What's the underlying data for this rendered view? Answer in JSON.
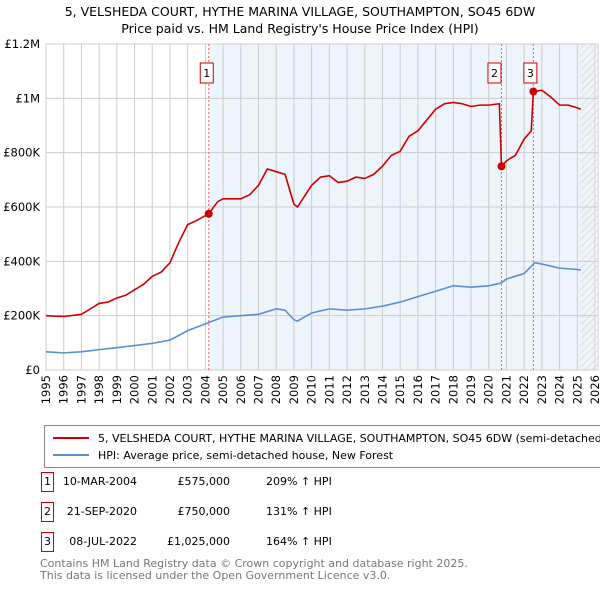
{
  "header": {
    "title_line1": "5, VELSHEDA COURT, HYTHE MARINA VILLAGE, SOUTHAMPTON, SO45 6DW",
    "title_line2": "Price paid vs. HM Land Registry's House Price Index (HPI)"
  },
  "colors": {
    "property": "#cc0000",
    "hpi": "#5b8fd0",
    "shade": "#eef4fc",
    "grid": "#cccccc"
  },
  "chart_data": {
    "type": "line",
    "xlim": [
      1995,
      2026
    ],
    "ylim": [
      0,
      1200000
    ],
    "y_ticks": [
      {
        "v": 0,
        "label": "£0"
      },
      {
        "v": 200000,
        "label": "£200K"
      },
      {
        "v": 400000,
        "label": "£400K"
      },
      {
        "v": 600000,
        "label": "£600K"
      },
      {
        "v": 800000,
        "label": "£800K"
      },
      {
        "v": 1000000,
        "label": "£1M"
      },
      {
        "v": 1200000,
        "label": "£1.2M"
      }
    ],
    "x_ticks": [
      "1995",
      "1996",
      "1997",
      "1998",
      "1999",
      "2000",
      "2001",
      "2002",
      "2003",
      "2004",
      "2005",
      "2006",
      "2007",
      "2008",
      "2009",
      "2010",
      "2011",
      "2012",
      "2013",
      "2014",
      "2015",
      "2016",
      "2017",
      "2018",
      "2019",
      "2020",
      "2021",
      "2022",
      "2023",
      "2024",
      "2025",
      "2026"
    ],
    "series": [
      {
        "name": "5, VELSHEDA COURT, HYTHE MARINA VILLAGE, SOUTHAMPTON, SO45 6DW (semi-detached house)",
        "color": "#cc0000",
        "x": [
          1995,
          1995.5,
          1996,
          1997,
          1997.5,
          1998,
          1998.5,
          1999,
          1999.5,
          2000,
          2000.5,
          2001,
          2001.5,
          2002,
          2002.5,
          2003,
          2003.5,
          2004.19,
          2004.7,
          2005,
          2006,
          2006.5,
          2007,
          2007.5,
          2008,
          2008.5,
          2009,
          2009.2,
          2010,
          2010.5,
          2011,
          2011.5,
          2012,
          2012.5,
          2013,
          2013.5,
          2014,
          2014.5,
          2015,
          2015.5,
          2016,
          2016.5,
          2017,
          2017.5,
          2018,
          2018.5,
          2019,
          2019.5,
          2020,
          2020.6,
          2020.72,
          2021,
          2021.5,
          2022,
          2022.4,
          2022.52,
          2023,
          2023.5,
          2024,
          2024.5,
          2025,
          2025.2
        ],
        "y": [
          200000,
          198000,
          197000,
          205000,
          225000,
          245000,
          250000,
          265000,
          275000,
          295000,
          315000,
          345000,
          360000,
          395000,
          470000,
          535000,
          550000,
          575000,
          620000,
          630000,
          630000,
          645000,
          680000,
          740000,
          730000,
          720000,
          610000,
          600000,
          680000,
          710000,
          715000,
          690000,
          695000,
          710000,
          705000,
          720000,
          750000,
          790000,
          805000,
          860000,
          880000,
          920000,
          960000,
          980000,
          985000,
          980000,
          970000,
          975000,
          975000,
          980000,
          750000,
          770000,
          790000,
          850000,
          880000,
          1025000,
          1030000,
          1005000,
          975000,
          975000,
          965000,
          960000
        ]
      },
      {
        "name": "HPI: Average price, semi-detached house, New Forest",
        "color": "#5b8fd0",
        "x": [
          1995,
          1996,
          1997,
          1998,
          1999,
          2000,
          2001,
          2002,
          2003,
          2004,
          2005,
          2006,
          2007,
          2008,
          2008.5,
          2009,
          2009.2,
          2010,
          2011,
          2012,
          2013,
          2014,
          2015,
          2016,
          2017,
          2018,
          2019,
          2020,
          2020.7,
          2021,
          2022,
          2022.6,
          2023,
          2024,
          2025,
          2025.2
        ],
        "y": [
          67000,
          63000,
          67000,
          75000,
          82000,
          90000,
          98000,
          110000,
          145000,
          170000,
          195000,
          200000,
          205000,
          225000,
          220000,
          185000,
          180000,
          210000,
          225000,
          220000,
          225000,
          235000,
          250000,
          270000,
          290000,
          310000,
          305000,
          310000,
          320000,
          335000,
          355000,
          395000,
          390000,
          375000,
          370000,
          368000
        ]
      }
    ],
    "sales": [
      {
        "n": "1",
        "x": 2004.19,
        "y": 575000
      },
      {
        "n": "2",
        "x": 2020.72,
        "y": 750000
      },
      {
        "n": "3",
        "x": 2022.52,
        "y": 1025000
      }
    ]
  },
  "legend": {
    "property_label": "5, VELSHEDA COURT, HYTHE MARINA VILLAGE, SOUTHAMPTON, SO45 6DW (semi-detached house)",
    "hpi_label": "HPI: Average price, semi-detached house, New Forest"
  },
  "transactions": [
    {
      "num": "1",
      "date": "10-MAR-2004",
      "price": "£575,000",
      "hpi": "209% ↑ HPI"
    },
    {
      "num": "2",
      "date": "21-SEP-2020",
      "price": "£750,000",
      "hpi": "131% ↑ HPI"
    },
    {
      "num": "3",
      "date": "08-JUL-2022",
      "price": "£1,025,000",
      "hpi": "164% ↑ HPI"
    }
  ],
  "footer": {
    "line1": "Contains HM Land Registry data © Crown copyright and database right 2025.",
    "line2": "This data is licensed under the Open Government Licence v3.0."
  }
}
